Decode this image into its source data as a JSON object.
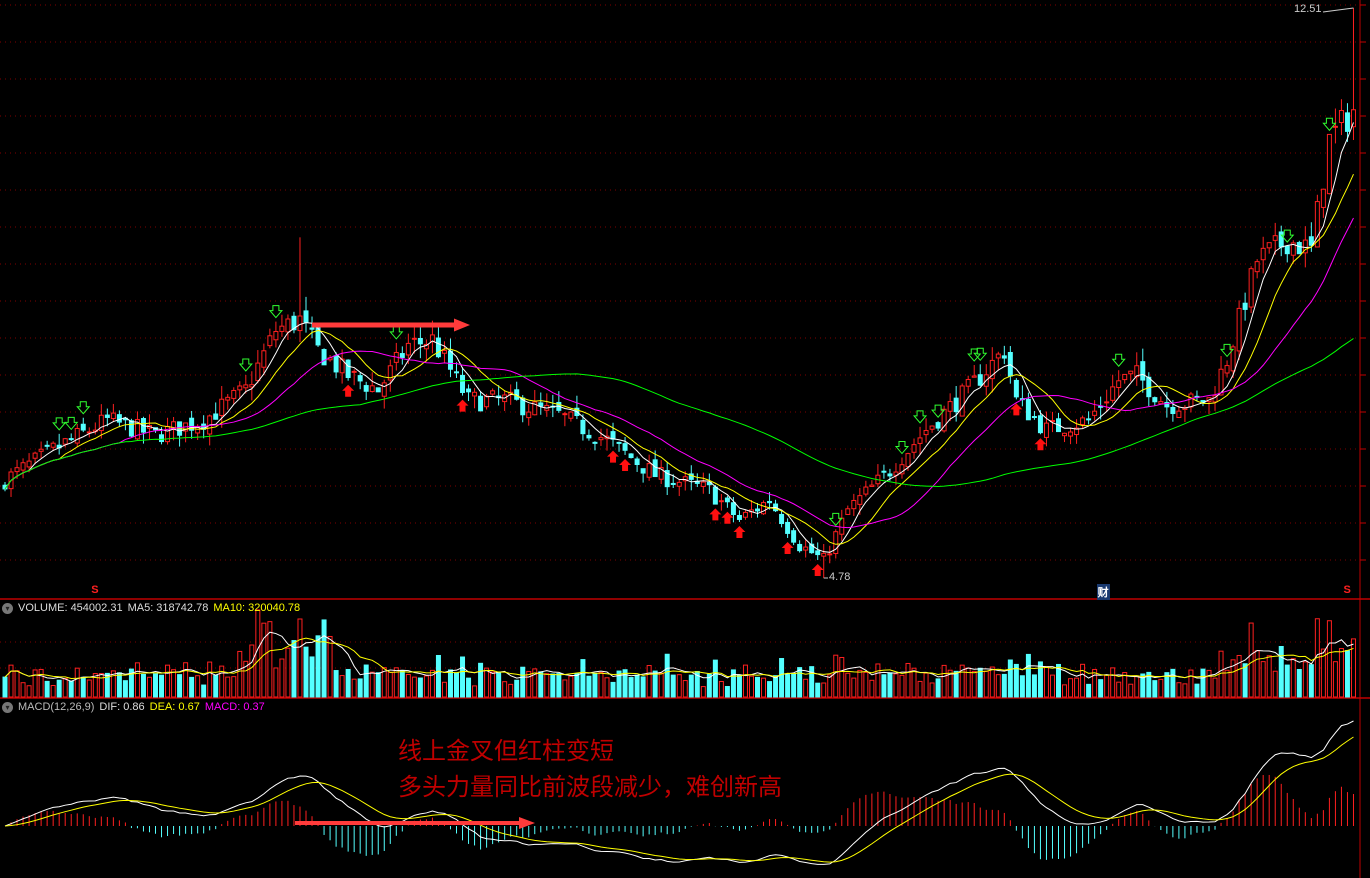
{
  "chart_data": {
    "type": "candlestick",
    "ylim": [
      4.78,
      12.51
    ],
    "high_label": "12.51",
    "low_label": "4.78",
    "close_path": [
      [
        0,
        6.11
      ],
      [
        8,
        6.52
      ],
      [
        17,
        6.92
      ],
      [
        25,
        6.72
      ],
      [
        33,
        6.92
      ],
      [
        40,
        7.33
      ],
      [
        45,
        8.14
      ],
      [
        49,
        8.28
      ],
      [
        52,
        7.87
      ],
      [
        57,
        7.53
      ],
      [
        62,
        7.33
      ],
      [
        67,
        7.94
      ],
      [
        71,
        8.01
      ],
      [
        77,
        7.19
      ],
      [
        83,
        7.19
      ],
      [
        92,
        6.99
      ],
      [
        100,
        6.65
      ],
      [
        108,
        6.18
      ],
      [
        117,
        5.97
      ],
      [
        122,
        5.57
      ],
      [
        127,
        5.84
      ],
      [
        132,
        5.23
      ],
      [
        136,
        5.02
      ],
      [
        140,
        5.7
      ],
      [
        147,
        6.24
      ],
      [
        153,
        6.79
      ],
      [
        160,
        7.33
      ],
      [
        166,
        7.87
      ],
      [
        168,
        7.19
      ],
      [
        173,
        6.79
      ],
      [
        180,
        6.92
      ],
      [
        185,
        7.46
      ],
      [
        188,
        7.53
      ],
      [
        193,
        7.13
      ],
      [
        200,
        7.19
      ],
      [
        203,
        7.74
      ],
      [
        208,
        9.09
      ],
      [
        213,
        9.36
      ],
      [
        217,
        9.23
      ],
      [
        220,
        10.72
      ],
      [
        224,
        11.13
      ]
    ],
    "moving_averages": [
      {
        "name": "MA5",
        "color": "#ffffff"
      },
      {
        "name": "MA10",
        "color": "#ffff00"
      },
      {
        "name": "MA20",
        "color": "#ff00ff"
      },
      {
        "name": "MA60",
        "color": "#00ff00"
      }
    ],
    "sell_signals_days": [
      9,
      11,
      13,
      40,
      45,
      65,
      138,
      149,
      152,
      155,
      161,
      162,
      185,
      203,
      213,
      220
    ],
    "buy_signals_days": [
      57,
      76,
      101,
      103,
      118,
      120,
      122,
      130,
      135,
      168,
      172
    ],
    "bottom_markers": [
      {
        "day": 15,
        "text": "S",
        "color": "#ff2020"
      },
      {
        "day": 182,
        "text": "财",
        "color": "#ffffff"
      },
      {
        "day": 223,
        "text": "S",
        "color": "#ff2020"
      }
    ],
    "up_color": "#ff2020",
    "down_color": "#54ffff",
    "volume": {
      "label": "VOLUME: 454002.31",
      "ma5": "MA5: 318742.78",
      "ma10": "MA10: 320040.78"
    },
    "macd": {
      "label": "MACD(12,26,9)",
      "dif": "DIF: 0.86",
      "dea": "DEA: 0.67",
      "macd": "MACD: 0.37"
    }
  },
  "annotations": {
    "line1": "线上金叉但红柱变短",
    "line2": "多头力量同比前波段减少，难创新高"
  }
}
